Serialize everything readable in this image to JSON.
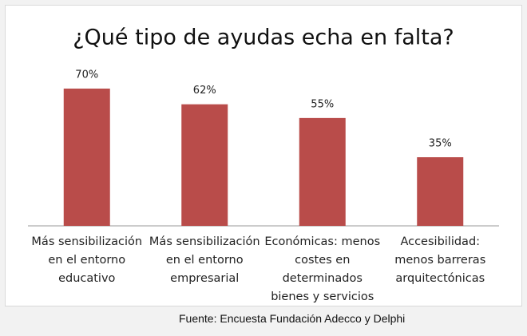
{
  "chart_data": {
    "type": "bar",
    "title": "¿Qué tipo de ayudas echa en falta?",
    "categories": [
      "Más sensibilización en el entorno educativo",
      "Más sensibilización en el entorno empresarial",
      "Económicas: menos costes en determinados bienes y servicios",
      "Accesibilidad: menos barreras arquitectónicas"
    ],
    "values": [
      70,
      62,
      55,
      35
    ],
    "value_labels": [
      "70%",
      "62%",
      "55%",
      "35%"
    ],
    "color": "#b94c4a",
    "source": "Fuente: Encuesta Fundación Adecco y Delphi"
  }
}
